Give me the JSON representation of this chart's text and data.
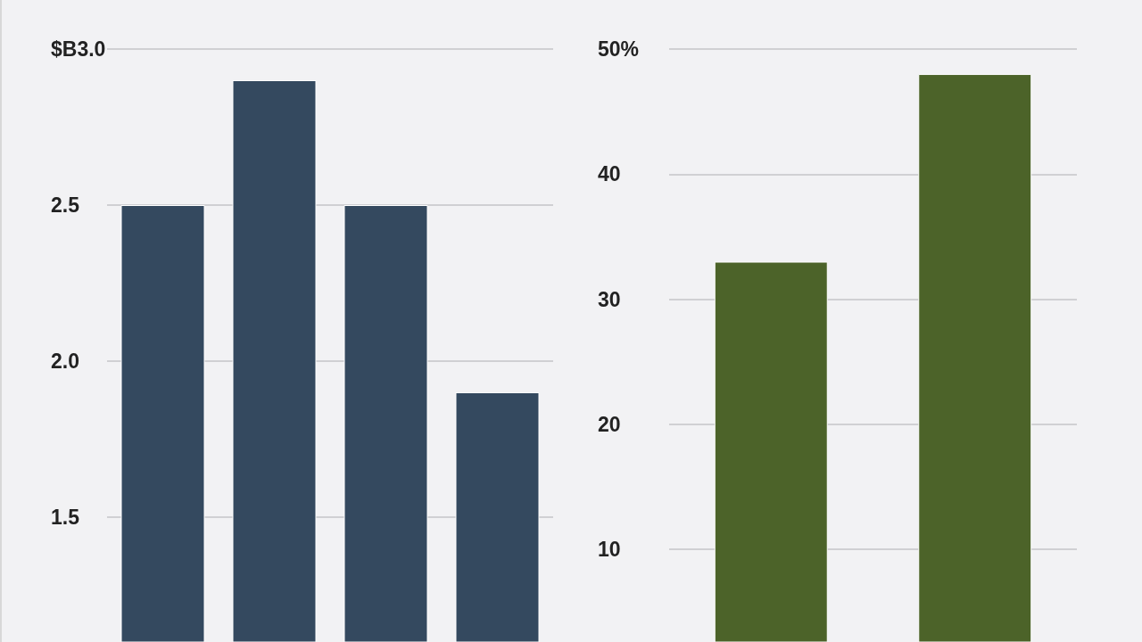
{
  "chart_data": [
    {
      "type": "bar",
      "categories": [
        null,
        null,
        null,
        null
      ],
      "values": [
        2.5,
        2.9,
        2.5,
        1.9
      ],
      "color": "#34495f",
      "ylim": [
        1.1,
        3.0
      ],
      "yticks": [
        1.5,
        {
          "value": 2.0,
          "label": "2.0"
        },
        2.5,
        {
          "value": 3.0,
          "label": "$B3.0"
        }
      ],
      "grid": "y",
      "tick_labels": "y"
    },
    {
      "type": "bar",
      "categories": [
        null,
        null
      ],
      "values": [
        33,
        48
      ],
      "color": "#4c6329",
      "ylim": [
        2.6,
        50
      ],
      "yticks": [
        10,
        20,
        30,
        40,
        {
          "value": 50,
          "label": "50%"
        }
      ],
      "grid": "y",
      "tick_labels": "y"
    }
  ]
}
